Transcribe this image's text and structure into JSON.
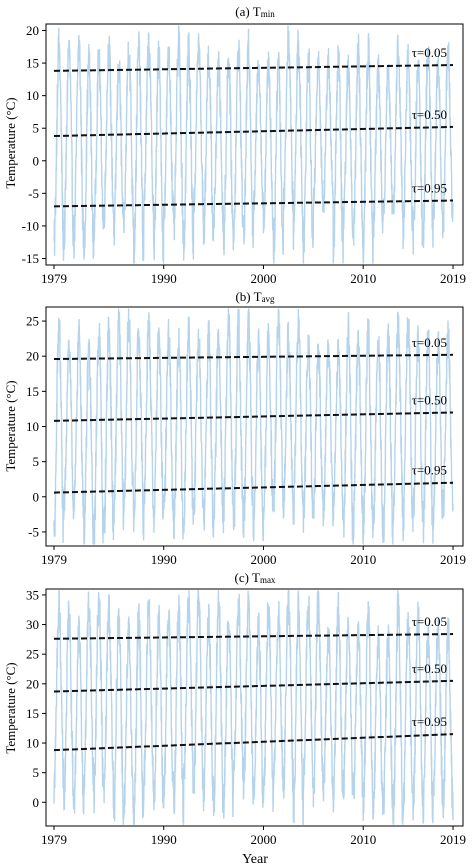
{
  "figure": {
    "xlabel": "Year",
    "colors": {
      "series": "#b5d3ea",
      "trend": "#111111",
      "axis": "#000000"
    }
  },
  "chart_data": [
    {
      "type": "line",
      "title": "(a) T",
      "title_sub": "min",
      "ylabel": "Temperature (°C)",
      "xlim": [
        1978.2,
        2020.0
      ],
      "ylim": [
        -16,
        21
      ],
      "yticks": [
        -15,
        -10,
        -5,
        0,
        5,
        10,
        15,
        20
      ],
      "xticks": [
        1979,
        1990,
        2000,
        2010,
        2019
      ],
      "grid": false,
      "series": [
        {
          "x_start": 1979,
          "x_end": 2019,
          "seasonal_peak_range": [
            14,
            18.5
          ],
          "seasonal_trough_range": [
            -14.5,
            -6.5
          ],
          "mean_peak": 16.5,
          "mean_trough": -9.5
        }
      ],
      "quantile_lines": [
        {
          "label": "τ=0.05",
          "y_start": 13.8,
          "y_end": 14.7
        },
        {
          "label": "τ=0.50",
          "y_start": 3.8,
          "y_end": 5.2
        },
        {
          "label": "τ=0.95",
          "y_start": -7.0,
          "y_end": -6.1
        }
      ]
    },
    {
      "type": "line",
      "title": "(b) T",
      "title_sub": "avg",
      "ylabel": "Temperature (°C)",
      "xlim": [
        1978.2,
        2020.0
      ],
      "ylim": [
        -7,
        27
      ],
      "yticks": [
        -5,
        0,
        5,
        10,
        15,
        20,
        25
      ],
      "xticks": [
        1979,
        1990,
        2000,
        2010,
        2019
      ],
      "grid": false,
      "series": [
        {
          "x_start": 1979,
          "x_end": 2019,
          "seasonal_peak_range": [
            20.5,
            25.5
          ],
          "seasonal_trough_range": [
            -6,
            -1
          ],
          "mean_peak": 22.5,
          "mean_trough": -2.5
        }
      ],
      "quantile_lines": [
        {
          "label": "τ=0.05",
          "y_start": 19.6,
          "y_end": 20.2
        },
        {
          "label": "τ=0.50",
          "y_start": 10.8,
          "y_end": 12.0
        },
        {
          "label": "τ=0.95",
          "y_start": 0.6,
          "y_end": 2.0
        }
      ]
    },
    {
      "type": "line",
      "title": "(c) T",
      "title_sub": "max",
      "ylabel": "Temperature (°C)",
      "xlim": [
        1978.2,
        2020.0
      ],
      "ylim": [
        -4,
        36
      ],
      "yticks": [
        0,
        5,
        10,
        15,
        20,
        25,
        30,
        35
      ],
      "xticks": [
        1979,
        1990,
        2000,
        2010,
        2019
      ],
      "grid": false,
      "series": [
        {
          "x_start": 1979,
          "x_end": 2019,
          "seasonal_peak_range": [
            28,
            34.5
          ],
          "seasonal_trough_range": [
            -2.5,
            4
          ],
          "mean_peak": 31,
          "mean_trough": 1.5
        }
      ],
      "quantile_lines": [
        {
          "label": "τ=0.05",
          "y_start": 27.6,
          "y_end": 28.4
        },
        {
          "label": "τ=0.50",
          "y_start": 18.7,
          "y_end": 20.5
        },
        {
          "label": "τ=0.95",
          "y_start": 8.8,
          "y_end": 11.5
        }
      ]
    }
  ]
}
